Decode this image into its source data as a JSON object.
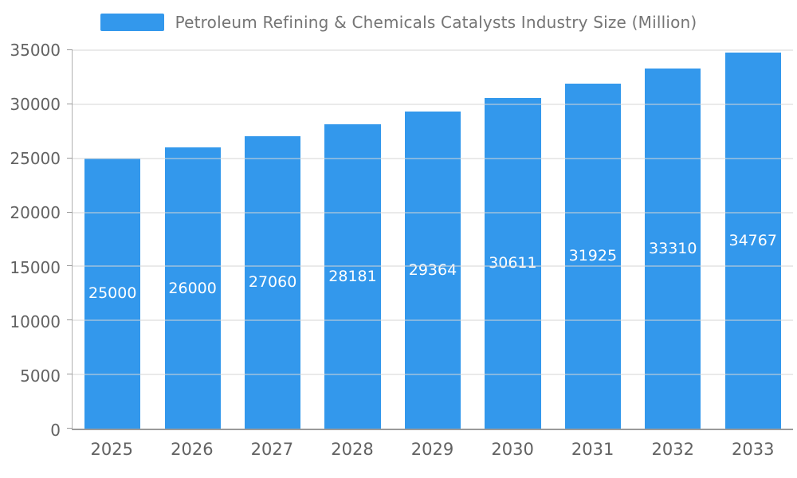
{
  "chart_data": {
    "type": "bar",
    "title": "Petroleum Refining & Chemicals Catalysts Industry Size (Million)",
    "categories": [
      "2025",
      "2026",
      "2027",
      "2028",
      "2029",
      "2030",
      "2031",
      "2032",
      "2033"
    ],
    "values": [
      25000,
      26000,
      27060,
      28181,
      29364,
      30611,
      31925,
      33310,
      34767
    ],
    "xlabel": "",
    "ylabel": "",
    "ylim": [
      0,
      35000
    ],
    "yticks": [
      0,
      5000,
      10000,
      15000,
      20000,
      25000,
      30000,
      35000
    ],
    "grid": true,
    "legend_position": "top",
    "colors": {
      "bar": "#3398EC",
      "bar_label": "#ffffff",
      "axis_text": "#626262",
      "legend_text": "#757575",
      "gridline": "#d6d6d6"
    }
  }
}
